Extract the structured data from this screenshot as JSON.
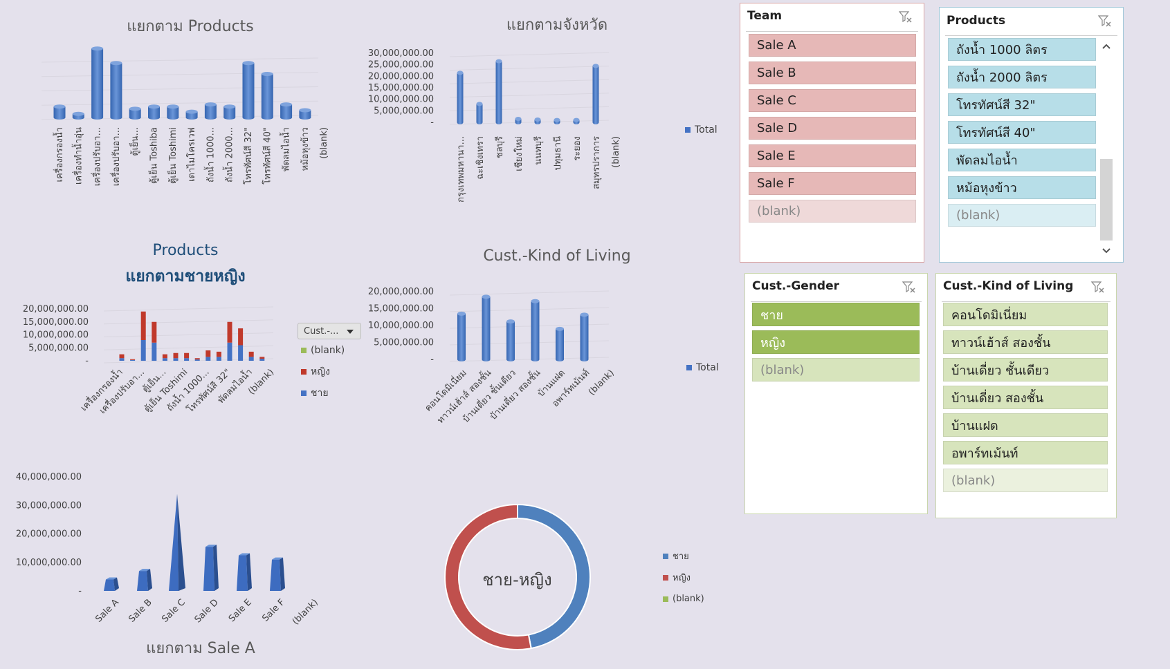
{
  "chart_data": [
    {
      "id": "products",
      "type": "bar",
      "title": "แยกตาม Products",
      "categories": [
        "เครื่องกรองน้ำ",
        "เครื่องทำน้ำอุ่น",
        "เครื่องปรับอา...",
        "เครื่องปรับอา...",
        "ตู้เย็น...",
        "ตู้เย็น Toshiba",
        "ตู้เย็น Toshimi",
        "เตาไมโครเวฟ",
        "ถังน้ำ 1000...",
        "ถังน้ำ 2000...",
        "โทรทัศน์สี 32\"",
        "โทรทัศน์สี 40\"",
        "พัดลมไอน้ำ",
        "หม้อหุงข้าว",
        "(blank)"
      ],
      "values": [
        1.5,
        0.5,
        9.5,
        7.5,
        1.2,
        1.5,
        1.5,
        0.8,
        1.8,
        1.5,
        7.5,
        6.0,
        1.8,
        1.0,
        0
      ],
      "grid": true
    },
    {
      "id": "province",
      "type": "bar",
      "title": "แยกตามจังหวัด",
      "categories": [
        "กรุงเทพมหานา...",
        "ฉะเชิงเทรา",
        "ชลบุรี",
        "เชียงใหม่",
        "นนทบุรี",
        "ปทุมธานี",
        "ระยอง",
        "สมุทรปราการ",
        "(blank)"
      ],
      "values": [
        21500000,
        8000000,
        26500000,
        1500000,
        1200000,
        1000000,
        1000000,
        24500000,
        0
      ],
      "yticks": [
        "30,000,000.00",
        "25,000,000.00",
        "20,000,000.00",
        "15,000,000.00",
        "10,000,000.00",
        "5,000,000.00",
        "-"
      ],
      "ylim": [
        0,
        30000000
      ],
      "legend": [
        {
          "name": "Total",
          "color": "#4472c4"
        }
      ],
      "grid": true
    },
    {
      "id": "gender",
      "type": "bar",
      "title": "Products",
      "subtitle": "แยกตามชายหญิง",
      "categories": [
        "เครื่องกรองน้ำ",
        "",
        "เครื่องปรับอา...",
        "",
        "ตู้เย็น...",
        "ตู้เย็น Toshimi",
        "",
        "ถังน้ำ 1000...",
        "",
        "โทรทัศน์สี 32\"",
        "",
        "พัดลมไอน้ำ",
        "",
        "(blank)"
      ],
      "tick_labels": [
        "เครื่องกรองน้ำ",
        "เครื่องปรับอา...",
        "ตู้เย็น...",
        "ตู้เย็น Toshimi",
        "ถังน้ำ 1000...",
        "โทรทัศน์สี 32\"",
        "พัดลมไอน้ำ",
        "(blank)"
      ],
      "series": [
        {
          "name": "ชาย",
          "color": "#4472c4",
          "values": [
            1000000,
            300000,
            8000000,
            7000000,
            1000000,
            1000000,
            1000000,
            500000,
            1500000,
            1500000,
            7000000,
            6000000,
            1500000,
            800000
          ]
        },
        {
          "name": "หญิง",
          "color": "#c0392b",
          "values": [
            1500000,
            300000,
            11000000,
            8000000,
            1500000,
            2000000,
            2000000,
            500000,
            2500000,
            2000000,
            8000000,
            6500000,
            2000000,
            700000
          ]
        },
        {
          "name": "(blank)",
          "color": "#9bbb59",
          "values": [
            0,
            0,
            0,
            0,
            0,
            0,
            0,
            0,
            0,
            0,
            0,
            0,
            0,
            0
          ]
        }
      ],
      "yticks": [
        "20,000,000.00",
        "15,000,000.00",
        "10,000,000.00",
        "5,000,000.00",
        "-"
      ],
      "ylim": [
        0,
        20000000
      ],
      "filter_label": "Cust.-...",
      "grid": true
    },
    {
      "id": "living",
      "type": "bar",
      "title": "Cust.-Kind of Living",
      "categories": [
        "คอนโดมิเนี่ยม",
        "ทาวน์เฮ้าส์ สองชั้น",
        "บ้านเดี่ยว ชั้นเดียว",
        "บ้านเดี่ยว สองชั้น",
        "บ้านแฝด",
        "อพาร์ทเม้นท์",
        "(blank)"
      ],
      "values": [
        13500000,
        18500000,
        11200000,
        17200000,
        9000000,
        13200000,
        0
      ],
      "yticks": [
        "20,000,000.00",
        "15,000,000.00",
        "10,000,000.00",
        "5,000,000.00",
        "-"
      ],
      "ylim": [
        0,
        20000000
      ],
      "legend": [
        {
          "name": "Total",
          "color": "#4472c4"
        }
      ],
      "grid": true
    },
    {
      "id": "sales",
      "type": "bar",
      "title": "แยกตาม Sale A",
      "categories": [
        "Sale A",
        "Sale B",
        "Sale C",
        "Sale D",
        "Sale E",
        "Sale F",
        "(blank)"
      ],
      "values": [
        4000000,
        7000000,
        34000000,
        15500000,
        12500000,
        11000000,
        0
      ],
      "yticks": [
        "40,000,000.00",
        "30,000,000.00",
        "20,000,000.00",
        "10,000,000.00",
        "-"
      ],
      "ylim": [
        0,
        40000000
      ],
      "grid": false
    },
    {
      "id": "donut",
      "type": "pie",
      "title": "ชาย-หญิง",
      "categories": [
        "ชาย",
        "หญิง",
        "(blank)"
      ],
      "values": [
        47,
        53,
        0
      ],
      "colors": [
        "#4f81bd",
        "#c0504d",
        "#9bbb59"
      ]
    }
  ],
  "slicers": {
    "team": {
      "title": "Team",
      "items": [
        "Sale A",
        "Sale B",
        "Sale C",
        "Sale D",
        "Sale E",
        "Sale F",
        "(blank)"
      ]
    },
    "products": {
      "title": "Products",
      "items": [
        "ถังน้ำ 1000 ลิตร",
        "ถังน้ำ 2000 ลิตร",
        "โทรทัศน์สี 32\"",
        "โทรทัศน์สี 40\"",
        "พัดลมไอน้ำ",
        "หม้อหุงข้าว",
        "(blank)"
      ]
    },
    "gender": {
      "title": "Cust.-Gender",
      "items": [
        "ชาย",
        "หญิง",
        "(blank)"
      ]
    },
    "living": {
      "title": "Cust.-Kind of Living",
      "items": [
        "คอนโดมิเนี่ยม",
        "ทาวน์เฮ้าส์ สองชั้น",
        "บ้านเดี่ยว ชั้นเดียว",
        "บ้านเดี่ยว สองชั้น",
        "บ้านแฝด",
        "อพาร์ทเม้นท์",
        "(blank)"
      ]
    }
  },
  "colors": {
    "bar": "#4472c4",
    "team_item": "#e6b8b7",
    "team_blank": "#efd9d9",
    "products_item": "#b7dee8",
    "products_blank": "#daeef3",
    "gender_item": "#9bbb59",
    "gender_blank": "#d7e4bc",
    "living_item": "#d7e4bc",
    "living_blank": "#ebf1de"
  }
}
